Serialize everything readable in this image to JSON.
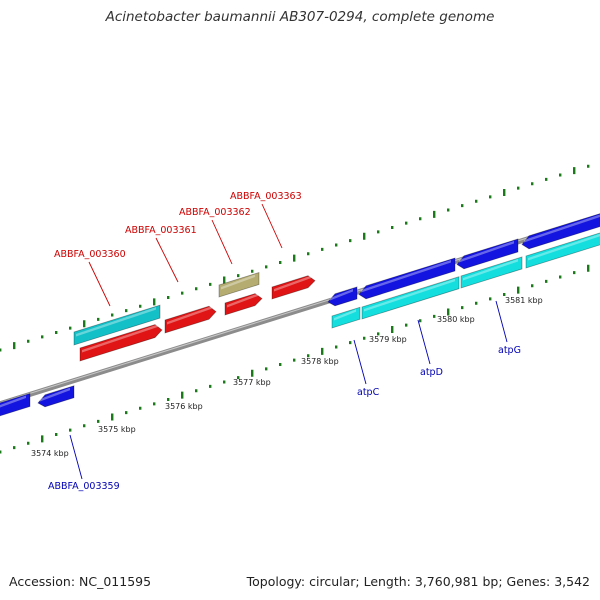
{
  "title": "Acinetobacter baumannii AB307-0294, complete genome",
  "footer": {
    "accession": "Accession: NC_011595",
    "topology": "Topology: circular; Length: 3,760,981 bp; Genes: 3,542"
  },
  "map": {
    "colors": {
      "backbone": "#8c8c8c",
      "tick": "#1a7a1a",
      "forward_cds": "#1414e0",
      "forward_rna": "#14dede",
      "reverse_cds": "#e01414",
      "reverse_rna": "#14c0c8",
      "other_feature": "#b4ac70",
      "forward_label": "#0000b4",
      "reverse_label": "#cc0000"
    },
    "tick_labels": [
      "3574 kbp",
      "3575 kbp",
      "3576 kbp",
      "3577 kbp",
      "3578 kbp",
      "3579 kbp",
      "3580 kbp",
      "3581 kbp"
    ],
    "forward_gene_labels": [
      "ABBFA_003359",
      "atpC",
      "atpD",
      "atpG"
    ],
    "reverse_gene_labels": [
      "ABBFA_003360",
      "ABBFA_003361",
      "ABBFA_003362",
      "ABBFA_003363"
    ]
  }
}
